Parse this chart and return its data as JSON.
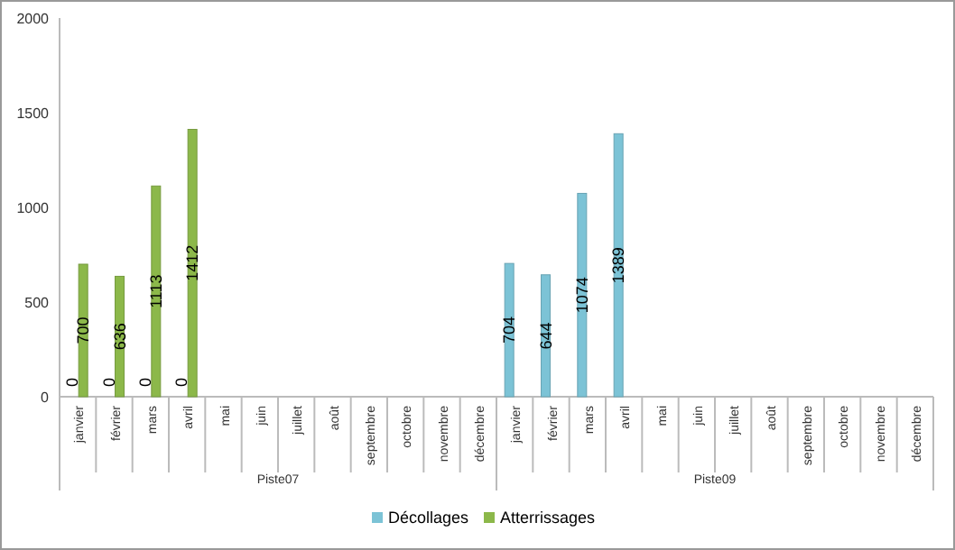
{
  "chart_data": {
    "type": "bar",
    "categories": [
      "janvier",
      "février",
      "mars",
      "avril",
      "mai",
      "juin",
      "juillet",
      "août",
      "septembre",
      "octobre",
      "novembre",
      "décembre",
      "janvier",
      "février",
      "mars",
      "avril",
      "mai",
      "juin",
      "juillet",
      "août",
      "septembre",
      "octobre",
      "novembre",
      "décembre"
    ],
    "series": [
      {
        "name": "Décollages",
        "color": "#7cc3d6",
        "values": [
          0,
          0,
          0,
          0,
          null,
          null,
          null,
          null,
          null,
          null,
          null,
          null,
          704,
          644,
          1074,
          1389,
          null,
          null,
          null,
          null,
          null,
          null,
          null,
          null
        ]
      },
      {
        "name": "Atterrissages",
        "color": "#8cb84a",
        "values": [
          700,
          636,
          1113,
          1412,
          null,
          null,
          null,
          null,
          null,
          null,
          null,
          null,
          null,
          null,
          null,
          null,
          null,
          null,
          null,
          null,
          null,
          null,
          null,
          null
        ]
      }
    ],
    "annotations": [
      "Piste07",
      "Piste09"
    ],
    "ylim": [
      0,
      2000
    ],
    "yticks": [
      0,
      500,
      1000,
      1500,
      2000
    ],
    "data_labels": true,
    "grid": false,
    "legend": "bottom"
  }
}
